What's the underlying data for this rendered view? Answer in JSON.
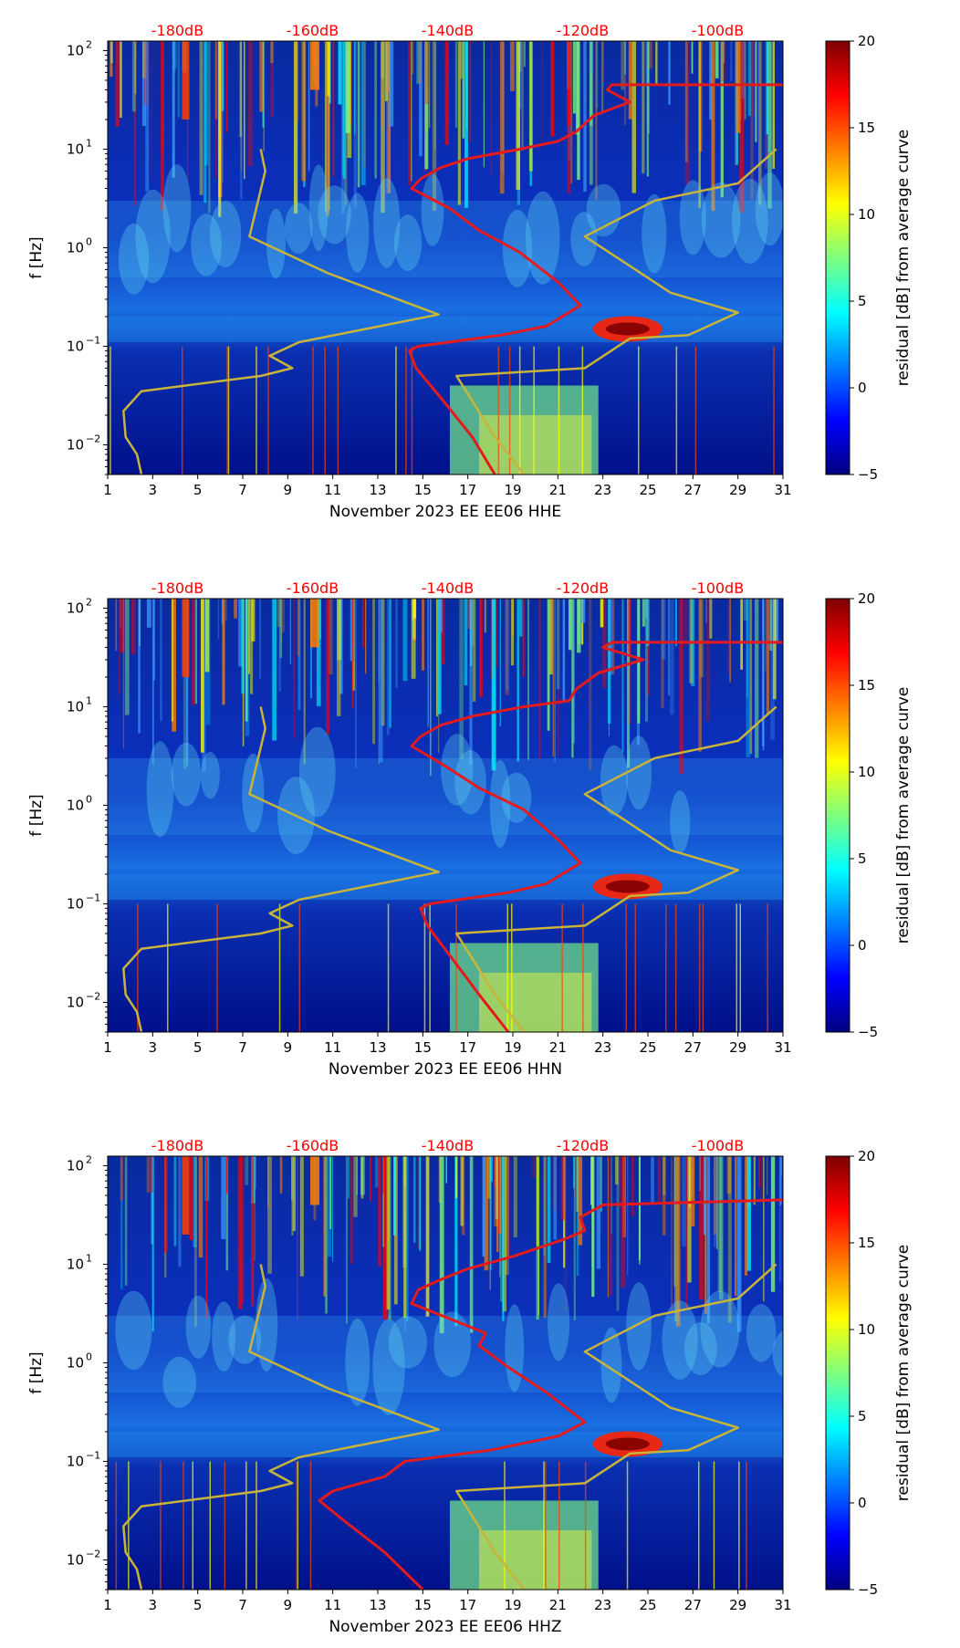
{
  "palette": {
    "red_curve": "#e41a1c",
    "yellow_curve": "#c9b43a",
    "db_label": "#ff0000",
    "jet": [
      "#00007f",
      "#0000ff",
      "#007fff",
      "#00ffff",
      "#7fff7f",
      "#ffff00",
      "#ff7f00",
      "#ff0000",
      "#7f0000"
    ]
  },
  "chart_data": [
    {
      "type": "heatmap",
      "title": "",
      "xlabel": "November 2023 EE EE06  HHE",
      "ylabel": "f [Hz]",
      "x_range": [
        1,
        31
      ],
      "x_ticks": [
        "1",
        "3",
        "5",
        "7",
        "9",
        "11",
        "13",
        "15",
        "17",
        "19",
        "21",
        "23",
        "25",
        "27",
        "29",
        "31"
      ],
      "y_scale": "log",
      "y_range": [
        0.005,
        125
      ],
      "y_ticks": [
        {
          "value": 0.01,
          "base": "10",
          "exp": "−2"
        },
        {
          "value": 0.1,
          "base": "10",
          "exp": "−1"
        },
        {
          "value": 1,
          "base": "10",
          "exp": "0"
        },
        {
          "value": 10,
          "base": "10",
          "exp": "1"
        },
        {
          "value": 100,
          "base": "10",
          "exp": "2"
        }
      ],
      "db_labels": [
        {
          "x": 4.1,
          "text": "-180dB"
        },
        {
          "x": 10.1,
          "text": "-160dB"
        },
        {
          "x": 16.1,
          "text": "-140dB"
        },
        {
          "x": 22.1,
          "text": "-120dB"
        },
        {
          "x": 28.1,
          "text": "-100dB"
        }
      ],
      "colorbar": {
        "label": "residual [dB] from average curve",
        "range": [
          -5,
          20
        ],
        "ticks": [
          "−5",
          "0",
          "5",
          "10",
          "15",
          "20"
        ]
      },
      "series": [
        {
          "name": "red curve",
          "points": [
            [
              18.2,
              0.005
            ],
            [
              17.2,
              0.012
            ],
            [
              15.8,
              0.03
            ],
            [
              14.7,
              0.06
            ],
            [
              14.4,
              0.09
            ],
            [
              14.8,
              0.1
            ],
            [
              18.5,
              0.13
            ],
            [
              20.5,
              0.16
            ],
            [
              22.0,
              0.26
            ],
            [
              21.0,
              0.45
            ],
            [
              19.3,
              0.9
            ],
            [
              17.5,
              1.5
            ],
            [
              16.2,
              2.5
            ],
            [
              14.5,
              4.0
            ],
            [
              14.9,
              5.0
            ],
            [
              15.8,
              6.5
            ],
            [
              17.0,
              8.0
            ],
            [
              19.3,
              10.0
            ],
            [
              21.0,
              12.0
            ],
            [
              21.8,
              15.0
            ],
            [
              22.6,
              22.0
            ],
            [
              24.2,
              30.0
            ],
            [
              23.2,
              40.0
            ],
            [
              23.4,
              45.0
            ],
            [
              31,
              45.0
            ]
          ]
        },
        {
          "name": "yellow curve",
          "points": [
            [
              2.5,
              0.005
            ],
            [
              2.3,
              0.008
            ],
            [
              1.8,
              0.012
            ],
            [
              1.7,
              0.022
            ],
            [
              2.5,
              0.035
            ],
            [
              7.8,
              0.05
            ],
            [
              9.2,
              0.06
            ],
            [
              8.2,
              0.08
            ],
            [
              9.5,
              0.11
            ],
            [
              15.7,
              0.21
            ],
            [
              13.1,
              0.35
            ],
            [
              10.8,
              0.55
            ],
            [
              7.3,
              1.3
            ],
            [
              8.0,
              6.0
            ],
            [
              7.8,
              10.0
            ]
          ]
        },
        {
          "name": "yellow curve 2",
          "points": [
            [
              19.5,
              0.005
            ],
            [
              18.2,
              0.012
            ],
            [
              16.5,
              0.05
            ],
            [
              22.2,
              0.06
            ],
            [
              24.2,
              0.12
            ],
            [
              26.8,
              0.13
            ],
            [
              29.0,
              0.22
            ],
            [
              26.0,
              0.35
            ],
            [
              24.0,
              0.7
            ],
            [
              22.2,
              1.3
            ],
            [
              25.3,
              3.0
            ],
            [
              29.0,
              4.5
            ],
            [
              30.7,
              10.0
            ]
          ]
        }
      ]
    },
    {
      "type": "heatmap",
      "title": "",
      "xlabel": "November 2023 EE EE06  HHN",
      "ylabel": "f [Hz]",
      "x_range": [
        1,
        31
      ],
      "x_ticks": [
        "1",
        "3",
        "5",
        "7",
        "9",
        "11",
        "13",
        "15",
        "17",
        "19",
        "21",
        "23",
        "25",
        "27",
        "29",
        "31"
      ],
      "y_scale": "log",
      "y_range": [
        0.005,
        125
      ],
      "y_ticks": [
        {
          "value": 0.01,
          "base": "10",
          "exp": "−2"
        },
        {
          "value": 0.1,
          "base": "10",
          "exp": "−1"
        },
        {
          "value": 1,
          "base": "10",
          "exp": "0"
        },
        {
          "value": 10,
          "base": "10",
          "exp": "1"
        },
        {
          "value": 100,
          "base": "10",
          "exp": "2"
        }
      ],
      "db_labels": [
        {
          "x": 4.1,
          "text": "-180dB"
        },
        {
          "x": 10.1,
          "text": "-160dB"
        },
        {
          "x": 16.1,
          "text": "-140dB"
        },
        {
          "x": 22.1,
          "text": "-120dB"
        },
        {
          "x": 28.1,
          "text": "-100dB"
        }
      ],
      "colorbar": {
        "label": "residual [dB] from average curve",
        "range": [
          -5,
          20
        ],
        "ticks": [
          "−5",
          "0",
          "5",
          "10",
          "15",
          "20"
        ]
      },
      "series": [
        {
          "name": "red curve",
          "points": [
            [
              18.8,
              0.005
            ],
            [
              17.5,
              0.012
            ],
            [
              16.2,
              0.03
            ],
            [
              15.2,
              0.06
            ],
            [
              14.9,
              0.09
            ],
            [
              15.3,
              0.1
            ],
            [
              18.8,
              0.13
            ],
            [
              20.5,
              0.16
            ],
            [
              22.0,
              0.26
            ],
            [
              21.0,
              0.45
            ],
            [
              19.5,
              0.9
            ],
            [
              17.5,
              1.5
            ],
            [
              16.0,
              2.5
            ],
            [
              14.5,
              4.0
            ],
            [
              14.9,
              5.0
            ],
            [
              15.8,
              6.5
            ],
            [
              17.2,
              8.0
            ],
            [
              19.5,
              10.0
            ],
            [
              21.5,
              11.5
            ],
            [
              21.8,
              15.0
            ],
            [
              22.8,
              22.0
            ],
            [
              24.8,
              30.0
            ],
            [
              23.0,
              40.0
            ],
            [
              23.4,
              45.0
            ],
            [
              31,
              45.0
            ]
          ]
        },
        {
          "name": "yellow curve",
          "points": [
            [
              2.5,
              0.005
            ],
            [
              2.3,
              0.008
            ],
            [
              1.8,
              0.012
            ],
            [
              1.7,
              0.022
            ],
            [
              2.5,
              0.035
            ],
            [
              7.8,
              0.05
            ],
            [
              9.2,
              0.06
            ],
            [
              8.2,
              0.08
            ],
            [
              9.5,
              0.11
            ],
            [
              15.7,
              0.21
            ],
            [
              13.1,
              0.35
            ],
            [
              10.8,
              0.55
            ],
            [
              7.3,
              1.3
            ],
            [
              8.0,
              6.0
            ],
            [
              7.8,
              10.0
            ]
          ]
        },
        {
          "name": "yellow curve 2",
          "points": [
            [
              19.5,
              0.005
            ],
            [
              18.2,
              0.012
            ],
            [
              16.5,
              0.05
            ],
            [
              22.2,
              0.06
            ],
            [
              24.2,
              0.12
            ],
            [
              26.8,
              0.13
            ],
            [
              29.0,
              0.22
            ],
            [
              26.0,
              0.35
            ],
            [
              24.0,
              0.7
            ],
            [
              22.2,
              1.3
            ],
            [
              25.3,
              3.0
            ],
            [
              29.0,
              4.5
            ],
            [
              30.7,
              10.0
            ]
          ]
        }
      ]
    },
    {
      "type": "heatmap",
      "title": "",
      "xlabel": "November 2023 EE EE06  HHZ",
      "ylabel": "f [Hz]",
      "x_range": [
        1,
        31
      ],
      "x_ticks": [
        "1",
        "3",
        "5",
        "7",
        "9",
        "11",
        "13",
        "15",
        "17",
        "19",
        "21",
        "23",
        "25",
        "27",
        "29",
        "31"
      ],
      "y_scale": "log",
      "y_range": [
        0.005,
        125
      ],
      "y_ticks": [
        {
          "value": 0.01,
          "base": "10",
          "exp": "−2"
        },
        {
          "value": 0.1,
          "base": "10",
          "exp": "−1"
        },
        {
          "value": 1,
          "base": "10",
          "exp": "0"
        },
        {
          "value": 10,
          "base": "10",
          "exp": "1"
        },
        {
          "value": 100,
          "base": "10",
          "exp": "2"
        }
      ],
      "db_labels": [
        {
          "x": 4.1,
          "text": "-180dB"
        },
        {
          "x": 10.1,
          "text": "-160dB"
        },
        {
          "x": 16.1,
          "text": "-140dB"
        },
        {
          "x": 22.1,
          "text": "-120dB"
        },
        {
          "x": 28.1,
          "text": "-100dB"
        }
      ],
      "colorbar": {
        "label": "residual [dB] from average curve",
        "range": [
          -5,
          20
        ],
        "ticks": [
          "−5",
          "0",
          "5",
          "10",
          "15",
          "20"
        ]
      },
      "series": [
        {
          "name": "red curve",
          "points": [
            [
              15.0,
              0.005
            ],
            [
              13.3,
              0.012
            ],
            [
              11.5,
              0.025
            ],
            [
              10.4,
              0.04
            ],
            [
              11.0,
              0.05
            ],
            [
              13.3,
              0.07
            ],
            [
              14.2,
              0.1
            ],
            [
              18.0,
              0.13
            ],
            [
              21.0,
              0.18
            ],
            [
              22.2,
              0.25
            ],
            [
              20.5,
              0.5
            ],
            [
              18.8,
              0.9
            ],
            [
              17.5,
              1.5
            ],
            [
              17.8,
              2.0
            ],
            [
              14.5,
              4.0
            ],
            [
              14.8,
              5.5
            ],
            [
              15.8,
              7.0
            ],
            [
              17.0,
              9.0
            ],
            [
              19.0,
              12.0
            ],
            [
              21.3,
              18.0
            ],
            [
              22.2,
              22.0
            ],
            [
              22.0,
              30.0
            ],
            [
              23.0,
              40.0
            ],
            [
              31,
              45.0
            ]
          ]
        },
        {
          "name": "yellow curve",
          "points": [
            [
              2.5,
              0.005
            ],
            [
              2.3,
              0.008
            ],
            [
              1.8,
              0.012
            ],
            [
              1.7,
              0.022
            ],
            [
              2.5,
              0.035
            ],
            [
              7.8,
              0.05
            ],
            [
              9.2,
              0.06
            ],
            [
              8.2,
              0.08
            ],
            [
              9.5,
              0.11
            ],
            [
              15.7,
              0.21
            ],
            [
              13.1,
              0.35
            ],
            [
              10.8,
              0.55
            ],
            [
              7.3,
              1.3
            ],
            [
              8.0,
              6.0
            ],
            [
              7.8,
              10.0
            ]
          ]
        },
        {
          "name": "yellow curve 2",
          "points": [
            [
              19.5,
              0.005
            ],
            [
              18.2,
              0.012
            ],
            [
              16.5,
              0.05
            ],
            [
              22.2,
              0.06
            ],
            [
              24.2,
              0.12
            ],
            [
              26.8,
              0.13
            ],
            [
              29.0,
              0.22
            ],
            [
              26.0,
              0.35
            ],
            [
              24.0,
              0.7
            ],
            [
              22.2,
              1.3
            ],
            [
              25.3,
              3.0
            ],
            [
              29.0,
              4.5
            ],
            [
              30.7,
              10.0
            ]
          ]
        }
      ]
    }
  ]
}
